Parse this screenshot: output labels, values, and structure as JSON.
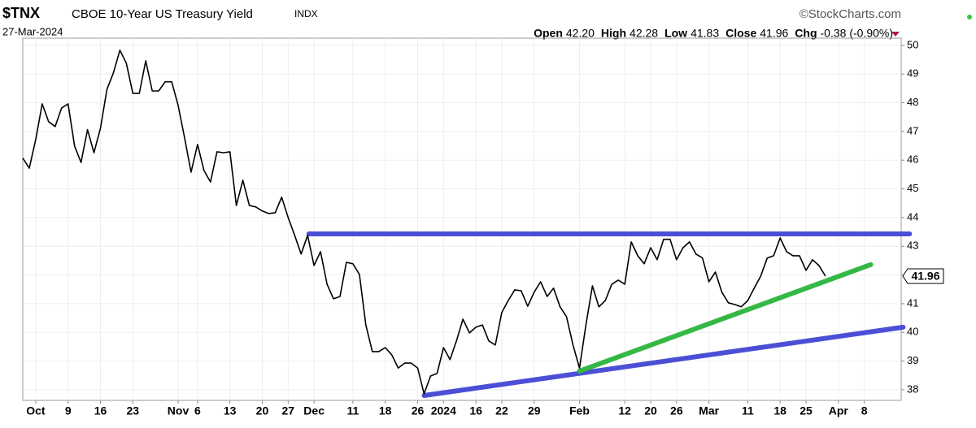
{
  "header": {
    "symbol": "$TNX",
    "name": "CBOE 10-Year US Treasury Yield",
    "exchange": "INDX",
    "date": "27-Mar-2024",
    "credit": "©StockCharts.com",
    "quote": [
      {
        "label": "Open",
        "value": "42.20"
      },
      {
        "label": "High",
        "value": "42.28"
      },
      {
        "label": "Low",
        "value": "41.83"
      },
      {
        "label": "Close",
        "value": "41.96"
      },
      {
        "label": "Chg",
        "value": "-0.38 (-0.90%)"
      }
    ]
  },
  "chart_data": {
    "type": "line",
    "color": "#000000",
    "grid": true,
    "x": [
      0,
      1,
      2,
      3,
      4,
      5,
      6,
      7,
      8,
      9,
      10,
      11,
      12,
      13,
      14,
      15,
      16,
      17,
      18,
      19,
      20,
      21,
      22,
      23,
      24,
      25,
      26,
      27,
      28,
      29,
      30,
      31,
      32,
      33,
      34,
      35,
      36,
      37,
      38,
      39,
      40,
      41,
      42,
      43,
      44,
      45,
      46,
      47,
      48,
      49,
      50,
      51,
      52,
      53,
      54,
      55,
      56,
      57,
      58,
      59,
      60,
      61,
      62,
      63,
      64,
      65,
      66,
      67,
      68,
      69,
      70,
      71,
      72,
      73,
      74,
      75,
      76,
      77,
      78,
      79,
      80,
      81,
      82,
      83,
      84,
      85,
      86,
      87,
      88,
      89,
      90,
      91,
      92,
      93,
      94,
      95,
      96,
      97,
      98,
      99,
      100,
      101,
      102,
      103,
      104,
      105,
      106,
      107,
      108,
      109,
      110,
      111,
      112,
      113,
      114,
      115,
      116,
      117,
      118,
      119,
      120,
      121,
      122,
      123,
      124
    ],
    "values": [
      46.07,
      45.72,
      46.72,
      47.96,
      47.34,
      47.17,
      47.82,
      47.96,
      46.49,
      45.92,
      47.06,
      46.26,
      47.11,
      48.47,
      49.04,
      49.83,
      49.38,
      48.33,
      48.33,
      49.46,
      48.41,
      48.41,
      48.73,
      48.73,
      47.91,
      46.77,
      45.58,
      46.55,
      45.64,
      45.24,
      46.29,
      46.26,
      46.29,
      44.42,
      45.3,
      44.42,
      44.37,
      44.23,
      44.14,
      44.17,
      44.71,
      44.0,
      43.38,
      42.73,
      43.38,
      42.33,
      42.81,
      41.68,
      41.17,
      41.25,
      42.44,
      42.39,
      42.02,
      40.26,
      39.33,
      39.33,
      39.47,
      39.22,
      38.76,
      38.93,
      38.93,
      38.76,
      37.86,
      38.48,
      38.57,
      39.47,
      39.05,
      39.7,
      40.46,
      39.98,
      40.18,
      40.26,
      39.7,
      39.56,
      40.69,
      41.11,
      41.48,
      41.45,
      40.91,
      41.4,
      41.76,
      41.25,
      41.54,
      40.89,
      40.55,
      39.56,
      38.76,
      40.26,
      41.62,
      40.89,
      41.11,
      41.68,
      41.82,
      41.68,
      43.15,
      42.67,
      42.39,
      42.95,
      42.53,
      43.24,
      43.24,
      42.53,
      42.95,
      43.15,
      42.73,
      42.59,
      41.76,
      42.1,
      41.4,
      41.03,
      40.97,
      40.89,
      41.11,
      41.54,
      41.96,
      42.59,
      42.67,
      43.29,
      42.81,
      42.67,
      42.67,
      42.16,
      42.53,
      42.33,
      41.96
    ],
    "xlim": [
      0,
      135.7
    ],
    "ylim": [
      37.63,
      50.25
    ],
    "yticks": [
      38,
      39,
      40,
      41,
      42,
      43,
      44,
      45,
      46,
      47,
      48,
      49,
      50
    ],
    "xticks": [
      {
        "value": 2,
        "label": "Oct"
      },
      {
        "value": 7,
        "label": "9"
      },
      {
        "value": 12,
        "label": "16"
      },
      {
        "value": 17,
        "label": "23"
      },
      {
        "value": 24,
        "label": "Nov"
      },
      {
        "value": 27,
        "label": "6"
      },
      {
        "value": 32,
        "label": "13"
      },
      {
        "value": 37,
        "label": "20"
      },
      {
        "value": 41,
        "label": "27"
      },
      {
        "value": 45,
        "label": "Dec"
      },
      {
        "value": 51,
        "label": "11"
      },
      {
        "value": 56,
        "label": "18"
      },
      {
        "value": 61,
        "label": "26"
      },
      {
        "value": 65,
        "label": "2024"
      },
      {
        "value": 70,
        "label": "16"
      },
      {
        "value": 74,
        "label": "22"
      },
      {
        "value": 79,
        "label": "29"
      },
      {
        "value": 86,
        "label": "Feb"
      },
      {
        "value": 93,
        "label": "12"
      },
      {
        "value": 97,
        "label": "20"
      },
      {
        "value": 101,
        "label": "26"
      },
      {
        "value": 106,
        "label": "Mar"
      },
      {
        "value": 112,
        "label": "11"
      },
      {
        "value": 117,
        "label": "18"
      },
      {
        "value": 121,
        "label": "25"
      },
      {
        "value": 126,
        "label": "Apr"
      },
      {
        "value": 130,
        "label": "8"
      }
    ],
    "trendlines": [
      {
        "color": "#4b4fd6",
        "x": [
          44.2,
          137
        ],
        "values": [
          43.43,
          43.43
        ]
      },
      {
        "color": "#4b4fd6",
        "x": [
          62,
          136
        ],
        "values": [
          37.8,
          40.18
        ]
      },
      {
        "color": "#35b846",
        "x": [
          86,
          131
        ],
        "values": [
          38.65,
          42.36
        ]
      }
    ]
  }
}
